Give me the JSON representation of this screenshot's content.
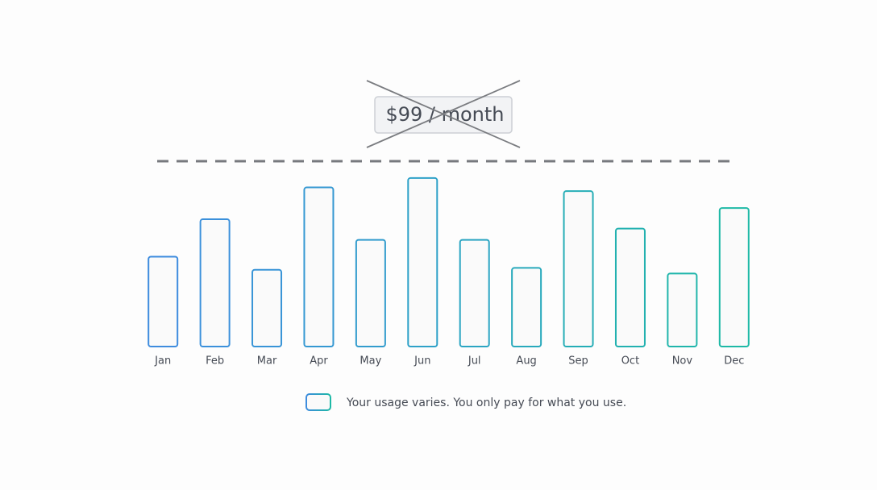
{
  "chart_data": {
    "type": "bar",
    "reference_line": {
      "value": 99,
      "label": "$99 / month"
    },
    "categories": [
      "Jan",
      "Feb",
      "Mar",
      "Apr",
      "May",
      "Jun",
      "Jul",
      "Aug",
      "Sep",
      "Oct",
      "Nov",
      "Dec"
    ],
    "series": [
      {
        "name": "Your usage varies. You only pay for what you use.",
        "values": [
          48,
          68,
          41,
          85,
          57,
          90,
          57,
          42,
          83,
          63,
          39,
          74
        ],
        "colors": [
          "#3e8cde",
          "#3b90db",
          "#3894d7",
          "#3598d2",
          "#329ccd",
          "#2ea1c8",
          "#2ba5c2",
          "#28a9bc",
          "#25adb6",
          "#22b1b0",
          "#20b5ab",
          "#1eb9a6"
        ]
      }
    ],
    "ylim": [
      0,
      99
    ]
  }
}
